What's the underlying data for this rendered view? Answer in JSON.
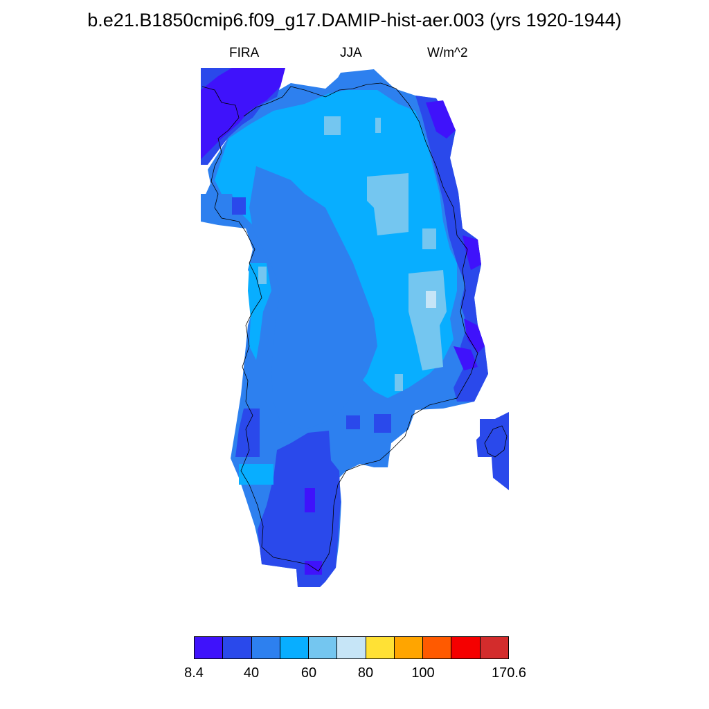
{
  "title": "b.e21.B1850cmip6.f09_g17.DAMIP-hist-aer.003 (yrs 1920-1944)",
  "subtitle": {
    "left": "FIRA",
    "center": "JJA",
    "right": "W/m^2"
  },
  "colorbar": {
    "colors": [
      "#3f12fb",
      "#2a49eb",
      "#2d80ef",
      "#08aeff",
      "#74c6f0",
      "#c6e5f7",
      "#ffe135",
      "#ffa500",
      "#ff5a00",
      "#f50000",
      "#d32c2c"
    ],
    "labels": [
      "8.4",
      "40",
      "60",
      "80",
      "100",
      "170.6"
    ]
  },
  "map": {
    "region": "Greenland",
    "variable": "FIRA",
    "season": "JJA",
    "units": "W/m^2",
    "value_range": [
      8.4,
      170.6
    ]
  }
}
